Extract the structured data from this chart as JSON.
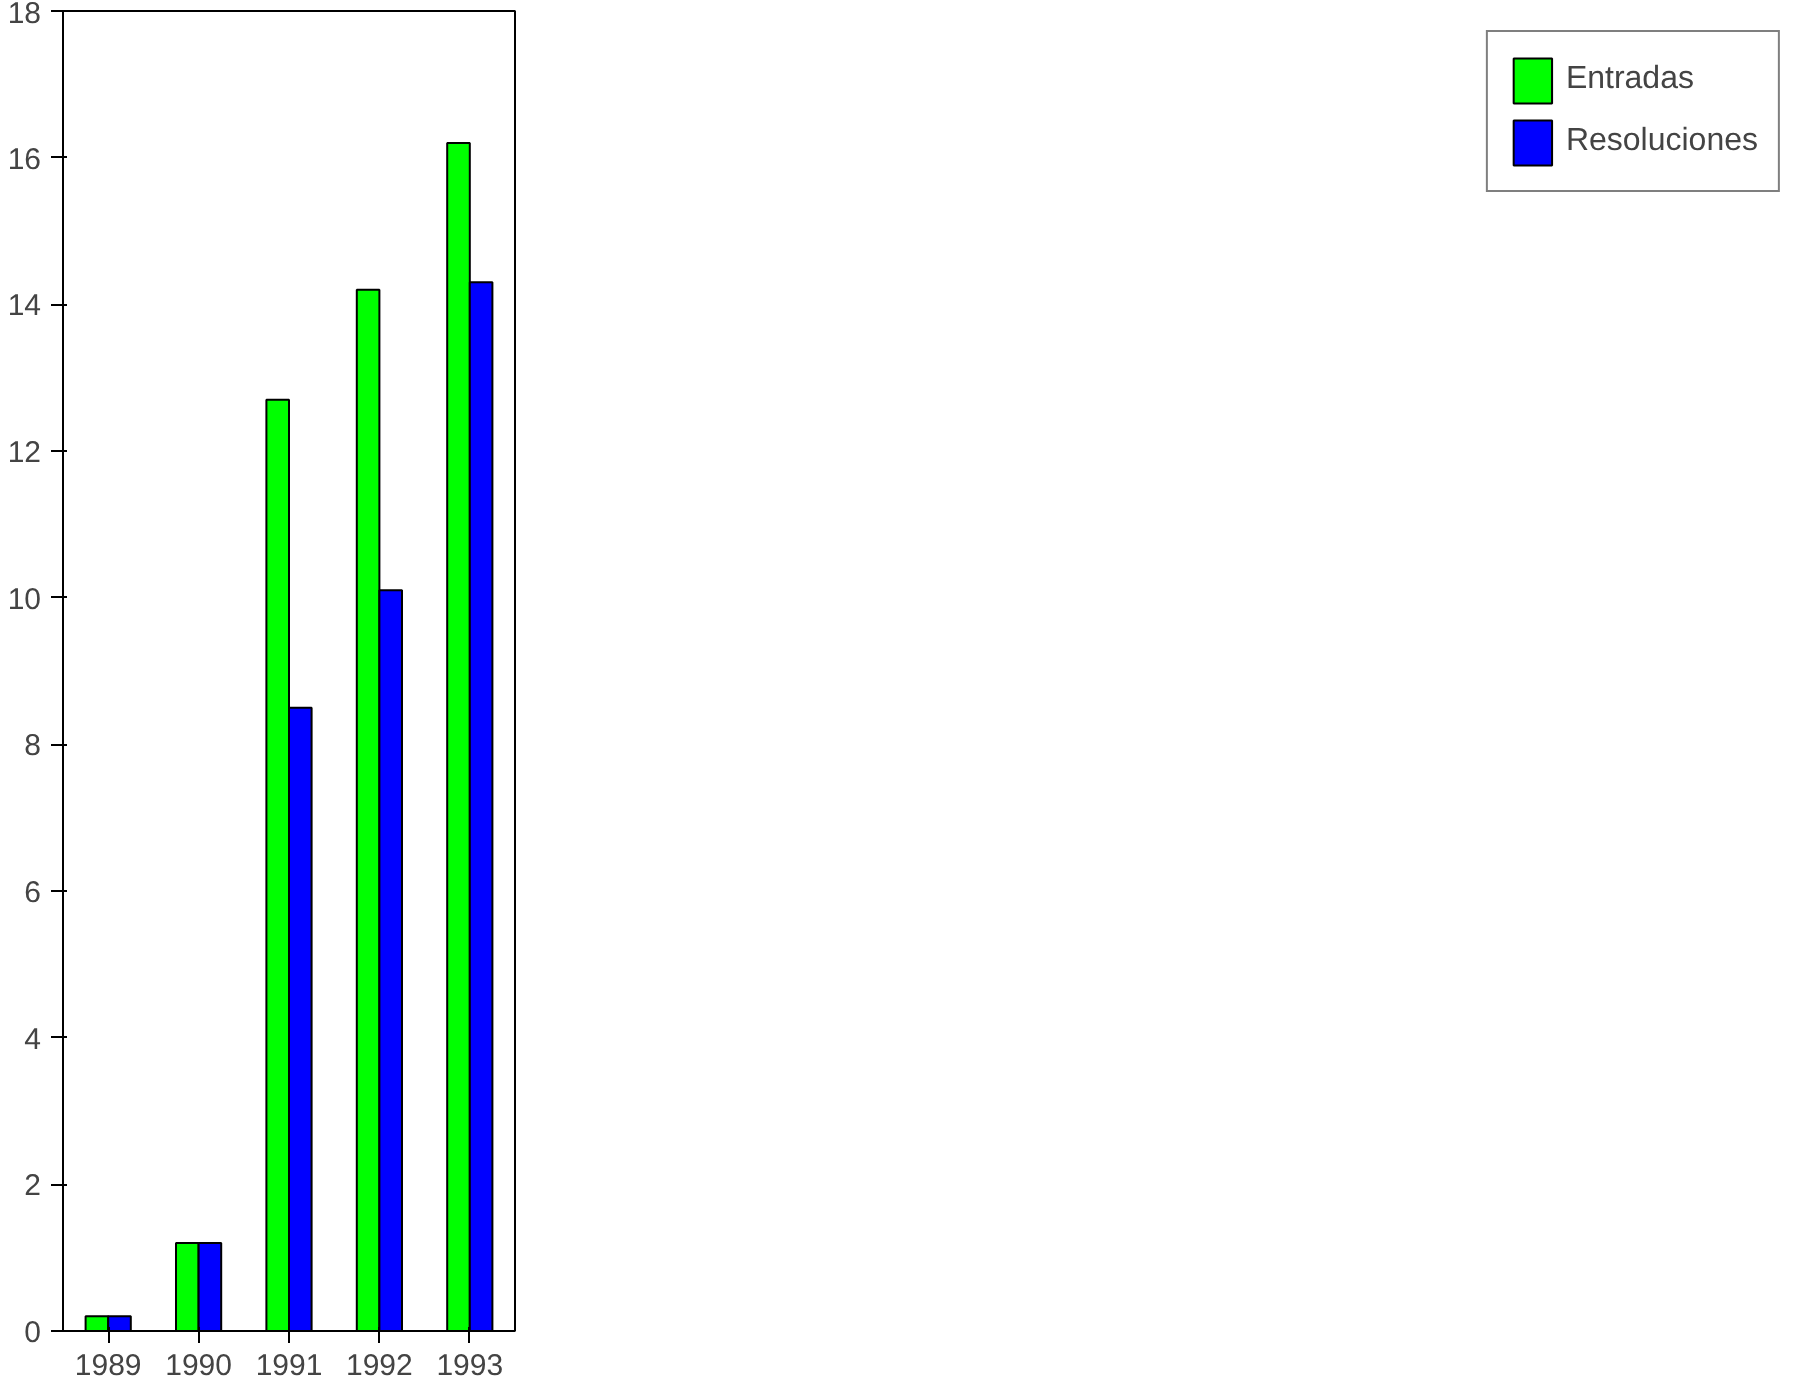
{
  "chart_data": {
    "type": "bar",
    "categories": [
      "1989",
      "1990",
      "1991",
      "1992",
      "1993"
    ],
    "series": [
      {
        "name": "Entradas",
        "color": "#00ff00",
        "values": [
          0.2,
          1.2,
          12.7,
          14.2,
          16.2
        ]
      },
      {
        "name": "Resoluciones",
        "color": "#0000ff",
        "values": [
          0.2,
          1.2,
          8.5,
          10.1,
          14.3
        ]
      }
    ],
    "ylim": [
      0,
      18
    ],
    "yticks": [
      0,
      2,
      4,
      6,
      8,
      10,
      12,
      14,
      16,
      18
    ],
    "grid": false,
    "legend": "right"
  }
}
